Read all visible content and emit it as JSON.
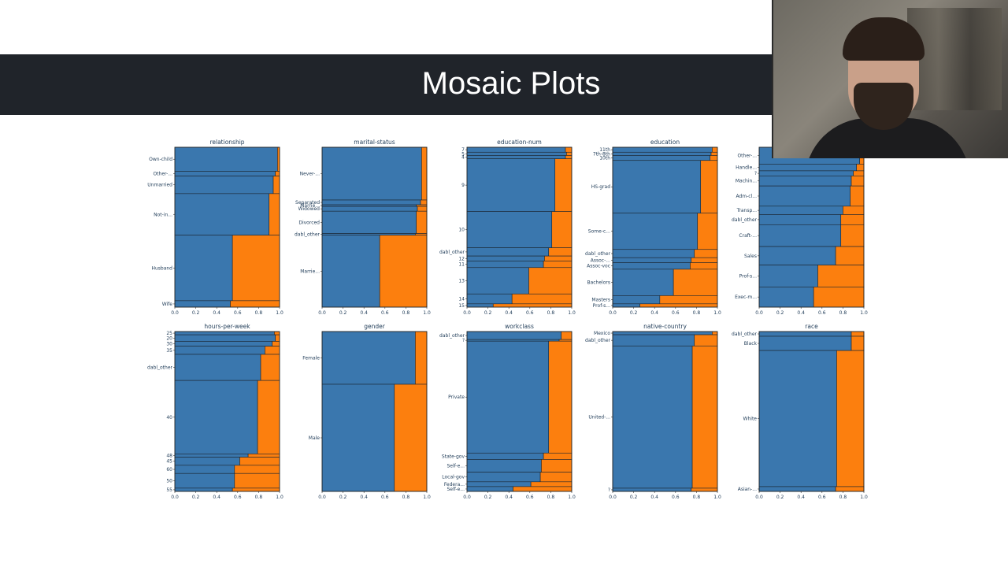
{
  "slide": {
    "title": "Mosaic Plots"
  },
  "webcam": {
    "description": "presenter"
  },
  "colors": {
    "blue": "#3a77ae",
    "orange": "#fc7f0e",
    "title_bg": "#20242a",
    "text": "#1f3b57"
  },
  "chart_data": [
    {
      "type": "bar",
      "title": "relationship",
      "xlim": [
        0,
        1
      ],
      "x_ticks": [
        "0.0",
        "0.2",
        "0.4",
        "0.6",
        "0.8",
        "1.0"
      ],
      "categories": [
        {
          "label": "Own-child",
          "share": 0.15,
          "positive": 0.02
        },
        {
          "label": "Other-...",
          "share": 0.03,
          "positive": 0.04
        },
        {
          "label": "Unmarried",
          "share": 0.11,
          "positive": 0.06
        },
        {
          "label": "Not-in...",
          "share": 0.26,
          "positive": 0.1
        },
        {
          "label": "Husband",
          "share": 0.41,
          "positive": 0.45
        },
        {
          "label": "Wife",
          "share": 0.04,
          "positive": 0.47
        }
      ]
    },
    {
      "type": "bar",
      "title": "marital-status",
      "xlim": [
        0,
        1
      ],
      "x_ticks": [
        "0.0",
        "0.2",
        "0.4",
        "0.6",
        "0.8",
        "1.0"
      ],
      "categories": [
        {
          "label": "Never-...",
          "share": 0.33,
          "positive": 0.05
        },
        {
          "label": "Separated",
          "share": 0.03,
          "positive": 0.06
        },
        {
          "label": "Marrie...",
          "share": 0.01,
          "positive": 0.1
        },
        {
          "label": "Widowed",
          "share": 0.03,
          "positive": 0.09
        },
        {
          "label": "Divorced",
          "share": 0.14,
          "positive": 0.1
        },
        {
          "label": "dabl_other",
          "share": 0.01,
          "positive": 0.11
        },
        {
          "label": "Marrie...",
          "share": 0.45,
          "positive": 0.45
        }
      ]
    },
    {
      "type": "bar",
      "title": "education-num",
      "xlim": [
        0,
        1
      ],
      "x_ticks": [
        "0.0",
        "0.2",
        "0.4",
        "0.6",
        "0.8",
        "1.0"
      ],
      "categories": [
        {
          "label": "7",
          "share": 0.03,
          "positive": 0.06
        },
        {
          "label": "5",
          "share": 0.02,
          "positive": 0.05
        },
        {
          "label": "4",
          "share": 0.02,
          "positive": 0.06
        },
        {
          "label": "9",
          "share": 0.32,
          "positive": 0.16
        },
        {
          "label": "10",
          "share": 0.22,
          "positive": 0.19
        },
        {
          "label": "dabl_other",
          "share": 0.05,
          "positive": 0.22
        },
        {
          "label": "12",
          "share": 0.03,
          "positive": 0.26
        },
        {
          "label": "11",
          "share": 0.04,
          "positive": 0.27
        },
        {
          "label": "13",
          "share": 0.16,
          "positive": 0.41
        },
        {
          "label": "14",
          "share": 0.06,
          "positive": 0.57
        },
        {
          "label": "15",
          "share": 0.02,
          "positive": 0.75
        }
      ]
    },
    {
      "type": "bar",
      "title": "education",
      "xlim": [
        0,
        1
      ],
      "x_ticks": [
        "0.0",
        "0.2",
        "0.4",
        "0.6",
        "0.8",
        "1.0"
      ],
      "categories": [
        {
          "label": "11th",
          "share": 0.03,
          "positive": 0.05
        },
        {
          "label": "7th-8th",
          "share": 0.02,
          "positive": 0.06
        },
        {
          "label": "10th",
          "share": 0.03,
          "positive": 0.07
        },
        {
          "label": "HS-grad",
          "share": 0.32,
          "positive": 0.16
        },
        {
          "label": "Some-c...",
          "share": 0.22,
          "positive": 0.19
        },
        {
          "label": "dabl_other",
          "share": 0.05,
          "positive": 0.22
        },
        {
          "label": "Assoc-...",
          "share": 0.03,
          "positive": 0.25
        },
        {
          "label": "Assoc-voc",
          "share": 0.04,
          "positive": 0.26
        },
        {
          "label": "Bachelors",
          "share": 0.16,
          "positive": 0.42
        },
        {
          "label": "Masters",
          "share": 0.05,
          "positive": 0.55
        },
        {
          "label": "Prof-s...",
          "share": 0.02,
          "positive": 0.74
        }
      ]
    },
    {
      "type": "bar",
      "title": "",
      "xlim": [
        0,
        1
      ],
      "x_ticks": [
        "0.0",
        "0.2",
        "0.4",
        "0.6",
        "0.8",
        "1.0"
      ],
      "categories": [
        {
          "label": "Other-...",
          "share": 0.1,
          "positive": 0.04
        },
        {
          "label": "Handle...",
          "share": 0.04,
          "positive": 0.07
        },
        {
          "label": "?",
          "share": 0.03,
          "positive": 0.1
        },
        {
          "label": "Machin...",
          "share": 0.06,
          "positive": 0.12
        },
        {
          "label": "Adm-cl...",
          "share": 0.12,
          "positive": 0.13
        },
        {
          "label": "Transp...",
          "share": 0.05,
          "positive": 0.2
        },
        {
          "label": "dabl_other",
          "share": 0.06,
          "positive": 0.22
        },
        {
          "label": "Craft-...",
          "share": 0.13,
          "positive": 0.22
        },
        {
          "label": "Sales",
          "share": 0.11,
          "positive": 0.27
        },
        {
          "label": "Prof-s...",
          "share": 0.13,
          "positive": 0.44
        },
        {
          "label": "Exec-m...",
          "share": 0.12,
          "positive": 0.48
        }
      ]
    },
    {
      "type": "bar",
      "title": "hours-per-week",
      "xlim": [
        0,
        1
      ],
      "x_ticks": [
        "0.0",
        "0.2",
        "0.4",
        "0.6",
        "0.8",
        "1.0"
      ],
      "categories": [
        {
          "label": "25",
          "share": 0.02,
          "positive": 0.05
        },
        {
          "label": "20",
          "share": 0.04,
          "positive": 0.04
        },
        {
          "label": "30",
          "share": 0.03,
          "positive": 0.07
        },
        {
          "label": "35",
          "share": 0.05,
          "positive": 0.14
        },
        {
          "label": "dabl_other",
          "share": 0.16,
          "positive": 0.18
        },
        {
          "label": "40",
          "share": 0.45,
          "positive": 0.21
        },
        {
          "label": "48",
          "share": 0.02,
          "positive": 0.3
        },
        {
          "label": "45",
          "share": 0.05,
          "positive": 0.38
        },
        {
          "label": "60",
          "share": 0.05,
          "positive": 0.43
        },
        {
          "label": "50",
          "share": 0.09,
          "positive": 0.43
        },
        {
          "label": "55",
          "share": 0.02,
          "positive": 0.45
        }
      ]
    },
    {
      "type": "bar",
      "title": "gender",
      "xlim": [
        0,
        1
      ],
      "x_ticks": [
        "0.0",
        "0.2",
        "0.4",
        "0.6",
        "0.8",
        "1.0"
      ],
      "categories": [
        {
          "label": "Female",
          "share": 0.33,
          "positive": 0.11
        },
        {
          "label": "Male",
          "share": 0.67,
          "positive": 0.31
        }
      ]
    },
    {
      "type": "bar",
      "title": "workclass",
      "xlim": [
        0,
        1
      ],
      "x_ticks": [
        "0.0",
        "0.2",
        "0.4",
        "0.6",
        "0.8",
        "1.0"
      ],
      "categories": [
        {
          "label": "dabl_other",
          "share": 0.05,
          "positive": 0.1
        },
        {
          "label": "?",
          "share": 0.01,
          "positive": 0.12
        },
        {
          "label": "Private",
          "share": 0.7,
          "positive": 0.22
        },
        {
          "label": "State-gov",
          "share": 0.04,
          "positive": 0.27
        },
        {
          "label": "Self-e...",
          "share": 0.08,
          "positive": 0.29
        },
        {
          "label": "Local-gov",
          "share": 0.06,
          "positive": 0.3
        },
        {
          "label": "Federa...",
          "share": 0.03,
          "positive": 0.39
        },
        {
          "label": "Self-e...",
          "share": 0.03,
          "positive": 0.56
        }
      ]
    },
    {
      "type": "bar",
      "title": "native-country",
      "xlim": [
        0,
        1
      ],
      "x_ticks": [
        "0.0",
        "0.2",
        "0.4",
        "0.6",
        "0.8",
        "1.0"
      ],
      "categories": [
        {
          "label": "Mexico",
          "share": 0.02,
          "positive": 0.05
        },
        {
          "label": "dabl_other",
          "share": 0.07,
          "positive": 0.22
        },
        {
          "label": "United-...",
          "share": 0.89,
          "positive": 0.24
        },
        {
          "label": "?",
          "share": 0.02,
          "positive": 0.25
        }
      ]
    },
    {
      "type": "bar",
      "title": "race",
      "xlim": [
        0,
        1
      ],
      "x_ticks": [
        "0.0",
        "0.2",
        "0.4",
        "0.6",
        "0.8",
        "1.0"
      ],
      "categories": [
        {
          "label": "dabl_other",
          "share": 0.03,
          "positive": 0.12
        },
        {
          "label": "Black",
          "share": 0.09,
          "positive": 0.12
        },
        {
          "label": "White",
          "share": 0.86,
          "positive": 0.26
        },
        {
          "label": "Asian-...",
          "share": 0.03,
          "positive": 0.27
        }
      ]
    }
  ]
}
